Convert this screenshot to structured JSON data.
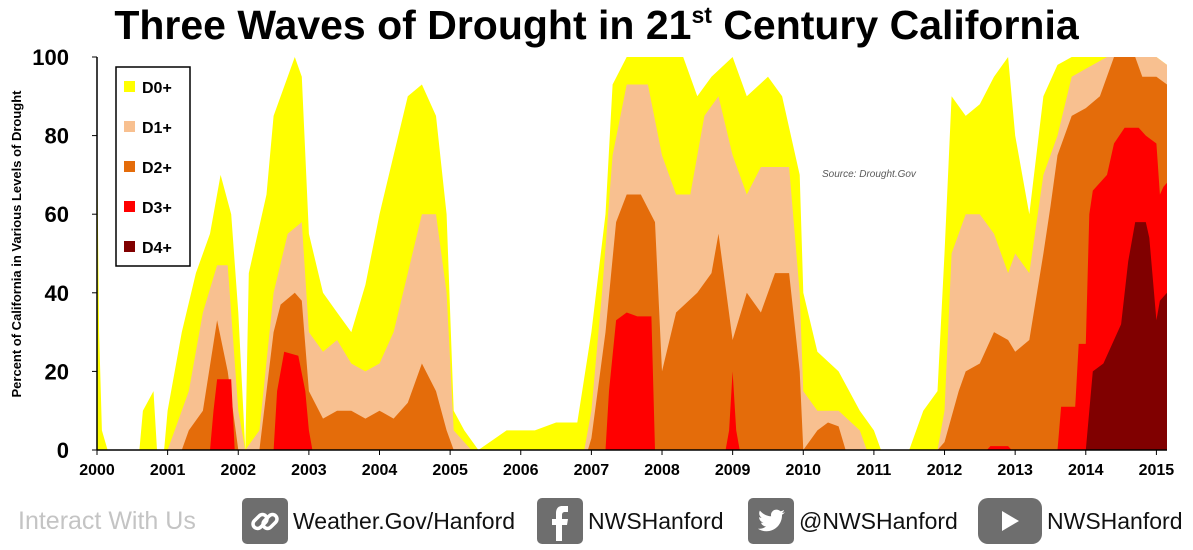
{
  "chart_data": {
    "type": "area",
    "title_main": "Three Waves of Drought in 21",
    "title_sup": "st",
    "title_end": " Century California",
    "ylabel": "Percent of California in Various Levels of Drought",
    "xlabel": "",
    "ylim": [
      0,
      100
    ],
    "xlim": [
      2000.0,
      2015.15
    ],
    "y_ticks": [
      "0",
      "20",
      "40",
      "60",
      "80",
      "100"
    ],
    "x_ticks": [
      "2000",
      "2001",
      "2002",
      "2003",
      "2004",
      "2005",
      "2006",
      "2007",
      "2008",
      "2009",
      "2010",
      "2011",
      "2012",
      "2013",
      "2014",
      "2015"
    ],
    "source_note": "Source:  Drought.Gov",
    "legend": {
      "position": "top-left",
      "entries": [
        "D0+",
        "D1+",
        "D2+",
        "D3+",
        "D4+"
      ]
    },
    "grid": false,
    "series": [
      {
        "name": "D0+",
        "color": "#ffff00",
        "points": [
          [
            2000.0,
            80
          ],
          [
            2000.03,
            30
          ],
          [
            2000.07,
            5
          ],
          [
            2000.15,
            0
          ],
          [
            2000.6,
            0
          ],
          [
            2000.65,
            10
          ],
          [
            2000.8,
            15
          ],
          [
            2000.85,
            0
          ],
          [
            2000.95,
            0
          ],
          [
            2001.0,
            10
          ],
          [
            2001.2,
            30
          ],
          [
            2001.4,
            45
          ],
          [
            2001.6,
            55
          ],
          [
            2001.75,
            70
          ],
          [
            2001.9,
            60
          ],
          [
            2002.0,
            35
          ],
          [
            2002.1,
            0
          ],
          [
            2002.15,
            45
          ],
          [
            2002.4,
            65
          ],
          [
            2002.5,
            85
          ],
          [
            2002.7,
            95
          ],
          [
            2002.8,
            100
          ],
          [
            2002.9,
            95
          ],
          [
            2003.0,
            55
          ],
          [
            2003.2,
            40
          ],
          [
            2003.4,
            35
          ],
          [
            2003.6,
            30
          ],
          [
            2003.8,
            42
          ],
          [
            2004.0,
            60
          ],
          [
            2004.2,
            75
          ],
          [
            2004.4,
            90
          ],
          [
            2004.6,
            93
          ],
          [
            2004.8,
            85
          ],
          [
            2004.95,
            60
          ],
          [
            2005.05,
            10
          ],
          [
            2005.2,
            5
          ],
          [
            2005.4,
            0
          ],
          [
            2005.8,
            5
          ],
          [
            2006.2,
            5
          ],
          [
            2006.5,
            7
          ],
          [
            2006.8,
            7
          ],
          [
            2007.0,
            30
          ],
          [
            2007.2,
            60
          ],
          [
            2007.3,
            93
          ],
          [
            2007.5,
            100
          ],
          [
            2007.8,
            100
          ],
          [
            2008.0,
            100
          ],
          [
            2008.3,
            100
          ],
          [
            2008.5,
            90
          ],
          [
            2008.7,
            95
          ],
          [
            2009.0,
            100
          ],
          [
            2009.2,
            90
          ],
          [
            2009.5,
            95
          ],
          [
            2009.7,
            90
          ],
          [
            2009.95,
            70
          ],
          [
            2010.0,
            40
          ],
          [
            2010.2,
            25
          ],
          [
            2010.5,
            20
          ],
          [
            2010.8,
            10
          ],
          [
            2011.0,
            5
          ],
          [
            2011.1,
            0
          ],
          [
            2011.5,
            0
          ],
          [
            2011.7,
            10
          ],
          [
            2011.9,
            15
          ],
          [
            2012.0,
            50
          ],
          [
            2012.1,
            90
          ],
          [
            2012.3,
            85
          ],
          [
            2012.5,
            88
          ],
          [
            2012.7,
            95
          ],
          [
            2012.9,
            100
          ],
          [
            2013.0,
            80
          ],
          [
            2013.2,
            60
          ],
          [
            2013.4,
            90
          ],
          [
            2013.6,
            98
          ],
          [
            2013.8,
            100
          ],
          [
            2014.0,
            100
          ],
          [
            2014.5,
            100
          ],
          [
            2014.8,
            100
          ],
          [
            2015.0,
            100
          ],
          [
            2015.15,
            98
          ]
        ]
      },
      {
        "name": "D1+",
        "color": "#f8c090",
        "points": [
          [
            2000.0,
            0
          ],
          [
            2001.0,
            0
          ],
          [
            2001.1,
            5
          ],
          [
            2001.3,
            15
          ],
          [
            2001.5,
            35
          ],
          [
            2001.7,
            47
          ],
          [
            2001.85,
            47
          ],
          [
            2002.0,
            10
          ],
          [
            2002.1,
            0
          ],
          [
            2002.3,
            5
          ],
          [
            2002.5,
            40
          ],
          [
            2002.7,
            55
          ],
          [
            2002.9,
            58
          ],
          [
            2003.0,
            30
          ],
          [
            2003.2,
            25
          ],
          [
            2003.4,
            28
          ],
          [
            2003.6,
            22
          ],
          [
            2003.8,
            20
          ],
          [
            2004.0,
            22
          ],
          [
            2004.2,
            30
          ],
          [
            2004.4,
            45
          ],
          [
            2004.6,
            60
          ],
          [
            2004.8,
            60
          ],
          [
            2004.95,
            40
          ],
          [
            2005.05,
            5
          ],
          [
            2005.3,
            0
          ],
          [
            2006.9,
            0
          ],
          [
            2007.0,
            10
          ],
          [
            2007.15,
            40
          ],
          [
            2007.3,
            75
          ],
          [
            2007.5,
            93
          ],
          [
            2007.8,
            93
          ],
          [
            2008.0,
            75
          ],
          [
            2008.2,
            65
          ],
          [
            2008.4,
            65
          ],
          [
            2008.6,
            85
          ],
          [
            2008.8,
            90
          ],
          [
            2009.0,
            75
          ],
          [
            2009.2,
            65
          ],
          [
            2009.4,
            72
          ],
          [
            2009.6,
            72
          ],
          [
            2009.8,
            72
          ],
          [
            2009.95,
            40
          ],
          [
            2010.0,
            15
          ],
          [
            2010.2,
            10
          ],
          [
            2010.5,
            10
          ],
          [
            2010.8,
            5
          ],
          [
            2010.9,
            0
          ],
          [
            2011.9,
            0
          ],
          [
            2012.0,
            10
          ],
          [
            2012.1,
            50
          ],
          [
            2012.3,
            60
          ],
          [
            2012.5,
            60
          ],
          [
            2012.7,
            55
          ],
          [
            2012.9,
            45
          ],
          [
            2013.0,
            50
          ],
          [
            2013.2,
            45
          ],
          [
            2013.4,
            70
          ],
          [
            2013.6,
            80
          ],
          [
            2013.8,
            95
          ],
          [
            2014.0,
            97
          ],
          [
            2014.3,
            100
          ],
          [
            2014.7,
            100
          ],
          [
            2015.0,
            100
          ],
          [
            2015.15,
            98
          ]
        ]
      },
      {
        "name": "D2+",
        "color": "#e46c0a",
        "points": [
          [
            2000.0,
            0
          ],
          [
            2001.2,
            0
          ],
          [
            2001.3,
            5
          ],
          [
            2001.5,
            10
          ],
          [
            2001.7,
            33
          ],
          [
            2001.85,
            20
          ],
          [
            2002.0,
            0
          ],
          [
            2002.3,
            0
          ],
          [
            2002.5,
            30
          ],
          [
            2002.6,
            37
          ],
          [
            2002.8,
            40
          ],
          [
            2002.9,
            38
          ],
          [
            2003.0,
            15
          ],
          [
            2003.2,
            8
          ],
          [
            2003.4,
            10
          ],
          [
            2003.6,
            10
          ],
          [
            2003.8,
            8
          ],
          [
            2004.0,
            10
          ],
          [
            2004.2,
            8
          ],
          [
            2004.4,
            12
          ],
          [
            2004.6,
            22
          ],
          [
            2004.8,
            15
          ],
          [
            2004.95,
            5
          ],
          [
            2005.05,
            0
          ],
          [
            2006.95,
            0
          ],
          [
            2007.0,
            3
          ],
          [
            2007.2,
            30
          ],
          [
            2007.35,
            58
          ],
          [
            2007.5,
            65
          ],
          [
            2007.7,
            65
          ],
          [
            2007.9,
            58
          ],
          [
            2008.0,
            20
          ],
          [
            2008.2,
            35
          ],
          [
            2008.5,
            40
          ],
          [
            2008.7,
            45
          ],
          [
            2008.8,
            55
          ],
          [
            2009.0,
            28
          ],
          [
            2009.2,
            40
          ],
          [
            2009.4,
            35
          ],
          [
            2009.6,
            45
          ],
          [
            2009.8,
            45
          ],
          [
            2009.95,
            20
          ],
          [
            2010.0,
            0
          ],
          [
            2010.2,
            5
          ],
          [
            2010.35,
            7
          ],
          [
            2010.5,
            6
          ],
          [
            2010.6,
            0
          ],
          [
            2011.9,
            0
          ],
          [
            2012.0,
            2
          ],
          [
            2012.2,
            15
          ],
          [
            2012.3,
            20
          ],
          [
            2012.5,
            22
          ],
          [
            2012.7,
            30
          ],
          [
            2012.9,
            28
          ],
          [
            2013.0,
            25
          ],
          [
            2013.2,
            28
          ],
          [
            2013.4,
            50
          ],
          [
            2013.5,
            62
          ],
          [
            2013.6,
            75
          ],
          [
            2013.8,
            85
          ],
          [
            2014.0,
            87
          ],
          [
            2014.2,
            90
          ],
          [
            2014.4,
            100
          ],
          [
            2014.7,
            100
          ],
          [
            2014.8,
            95
          ],
          [
            2015.0,
            95
          ],
          [
            2015.15,
            93
          ]
        ]
      },
      {
        "name": "D3+",
        "color": "#ff0000",
        "points": [
          [
            2000.0,
            0
          ],
          [
            2001.6,
            0
          ],
          [
            2001.65,
            10
          ],
          [
            2001.7,
            18
          ],
          [
            2001.9,
            18
          ],
          [
            2001.95,
            0
          ],
          [
            2002.5,
            0
          ],
          [
            2002.55,
            15
          ],
          [
            2002.65,
            25
          ],
          [
            2002.85,
            24
          ],
          [
            2002.95,
            15
          ],
          [
            2003.0,
            5
          ],
          [
            2003.05,
            0
          ],
          [
            2007.2,
            0
          ],
          [
            2007.25,
            15
          ],
          [
            2007.35,
            33
          ],
          [
            2007.5,
            35
          ],
          [
            2007.65,
            34
          ],
          [
            2007.85,
            34
          ],
          [
            2007.9,
            0
          ],
          [
            2008.9,
            0
          ],
          [
            2008.95,
            5
          ],
          [
            2009.0,
            20
          ],
          [
            2009.05,
            5
          ],
          [
            2009.1,
            0
          ],
          [
            2012.6,
            0
          ],
          [
            2012.65,
            1
          ],
          [
            2012.9,
            1
          ],
          [
            2012.95,
            0
          ],
          [
            2013.6,
            0
          ],
          [
            2013.65,
            11
          ],
          [
            2013.85,
            11
          ],
          [
            2013.9,
            27
          ],
          [
            2014.0,
            27
          ],
          [
            2014.05,
            60
          ],
          [
            2014.1,
            66
          ],
          [
            2014.3,
            70
          ],
          [
            2014.4,
            78
          ],
          [
            2014.55,
            82
          ],
          [
            2014.75,
            82
          ],
          [
            2014.85,
            80
          ],
          [
            2015.0,
            78
          ],
          [
            2015.05,
            65
          ],
          [
            2015.1,
            67
          ],
          [
            2015.15,
            68
          ]
        ]
      },
      {
        "name": "D4+",
        "color": "#800000",
        "points": [
          [
            2000.0,
            0
          ],
          [
            2014.0,
            0
          ],
          [
            2014.05,
            10
          ],
          [
            2014.1,
            20
          ],
          [
            2014.25,
            22
          ],
          [
            2014.4,
            28
          ],
          [
            2014.5,
            32
          ],
          [
            2014.6,
            48
          ],
          [
            2014.7,
            58
          ],
          [
            2014.85,
            58
          ],
          [
            2014.9,
            54
          ],
          [
            2015.0,
            33
          ],
          [
            2015.05,
            38
          ],
          [
            2015.15,
            40
          ]
        ]
      }
    ]
  },
  "footer": {
    "interact": "Interact With Us",
    "links": [
      {
        "icon": "link-icon",
        "label": "Weather.Gov/Hanford"
      },
      {
        "icon": "facebook-icon",
        "label": "NWSHanford"
      },
      {
        "icon": "twitter-icon",
        "label": "@NWSHanford"
      },
      {
        "icon": "youtube-icon",
        "label": "NWSHanford"
      }
    ]
  }
}
